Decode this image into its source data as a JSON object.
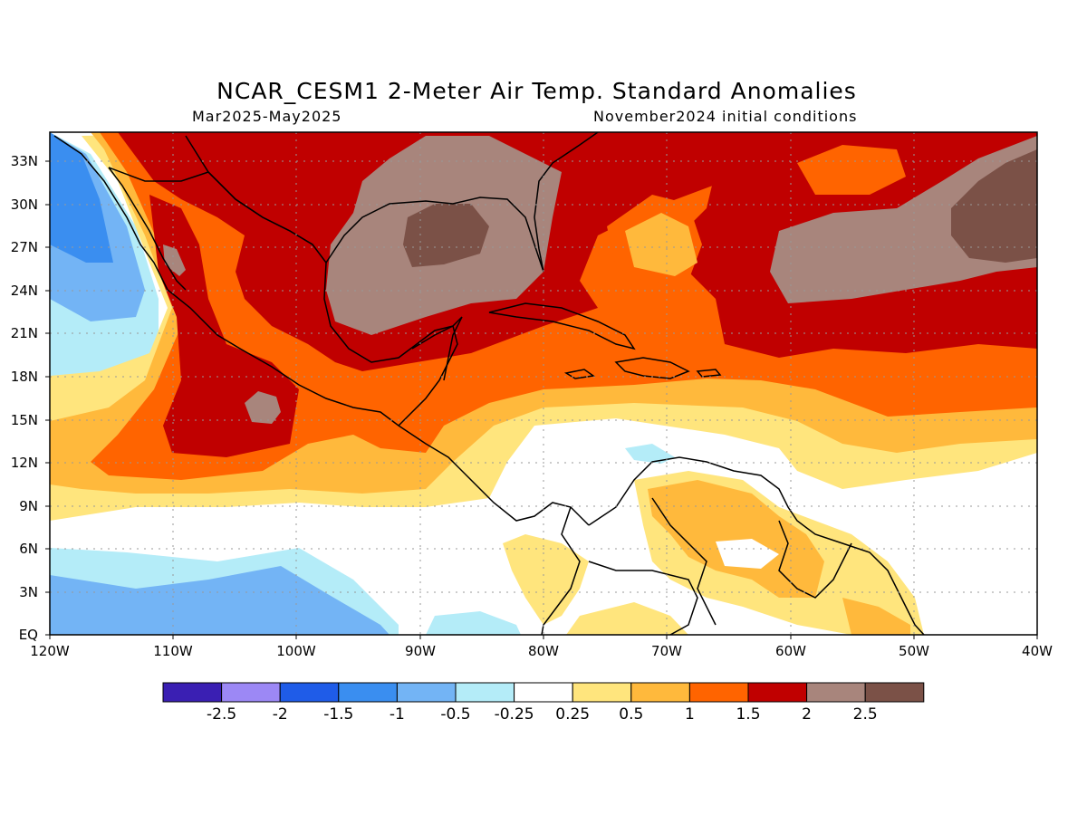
{
  "title": "NCAR_CESM1 2-Meter Air Temp. Standard Anomalies",
  "subtitle_left": "Mar2025-May2025",
  "subtitle_right": "November2024 initial conditions",
  "map": {
    "region": "Gulf of Mexico, Caribbean, Central America and northern South America",
    "lat_labels": [
      "33N",
      "30N",
      "27N",
      "24N",
      "21N",
      "18N",
      "15N",
      "12N",
      "9N",
      "6N",
      "3N",
      "EQ"
    ],
    "lon_labels": [
      "120W",
      "110W",
      "100W",
      "90W",
      "80W",
      "70W",
      "60W",
      "50W",
      "40W"
    ],
    "gridlines": "dotted"
  },
  "colorbar": {
    "colors": [
      "#3a1fb3",
      "#9c88f5",
      "#1f5ce8",
      "#3a8ef0",
      "#73b4f5",
      "#b4ecf8",
      "#ffffff",
      "#ffe57d",
      "#ffb93c",
      "#ff6400",
      "#c00000",
      "#a8857c",
      "#7b5147"
    ],
    "labels": [
      "-2.5",
      "-2",
      "-1.5",
      "-1",
      "-0.5",
      "-0.25",
      "0.25",
      "0.5",
      "1",
      "1.5",
      "2",
      "2.5"
    ]
  }
}
